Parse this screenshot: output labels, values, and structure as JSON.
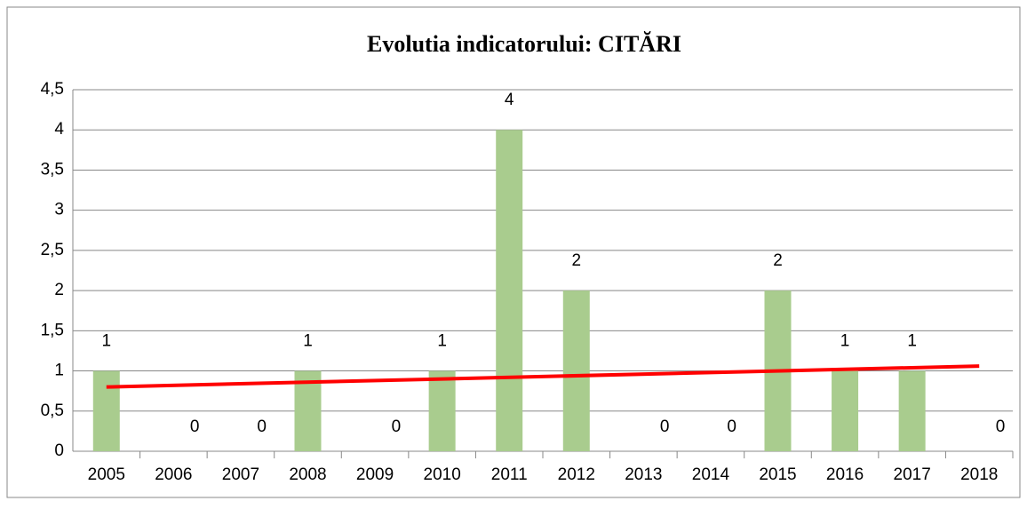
{
  "chart_data": {
    "type": "bar",
    "title": "Evolutia indicatorului: CITĂRI",
    "categories": [
      "2005",
      "2006",
      "2007",
      "2008",
      "2009",
      "2010",
      "2011",
      "2012",
      "2013",
      "2014",
      "2015",
      "2016",
      "2017",
      "2018"
    ],
    "values": [
      1,
      0,
      0,
      1,
      0,
      1,
      4,
      2,
      0,
      0,
      2,
      1,
      1,
      0
    ],
    "color": "#a9cc8e",
    "ylim": [
      0,
      4.5
    ],
    "yticks": [
      0,
      {
        "value": 0.5,
        "label": "0,5"
      },
      1,
      {
        "value": 1.5,
        "label": "1,5"
      },
      2,
      {
        "value": 2.5,
        "label": "2,5"
      },
      3,
      {
        "value": 3.5,
        "label": "3,5"
      },
      4,
      {
        "value": 4.5,
        "label": "4,5"
      }
    ],
    "grid": true,
    "trend": {
      "start": 0.8,
      "end": 1.06,
      "color": "#ff0000"
    }
  }
}
